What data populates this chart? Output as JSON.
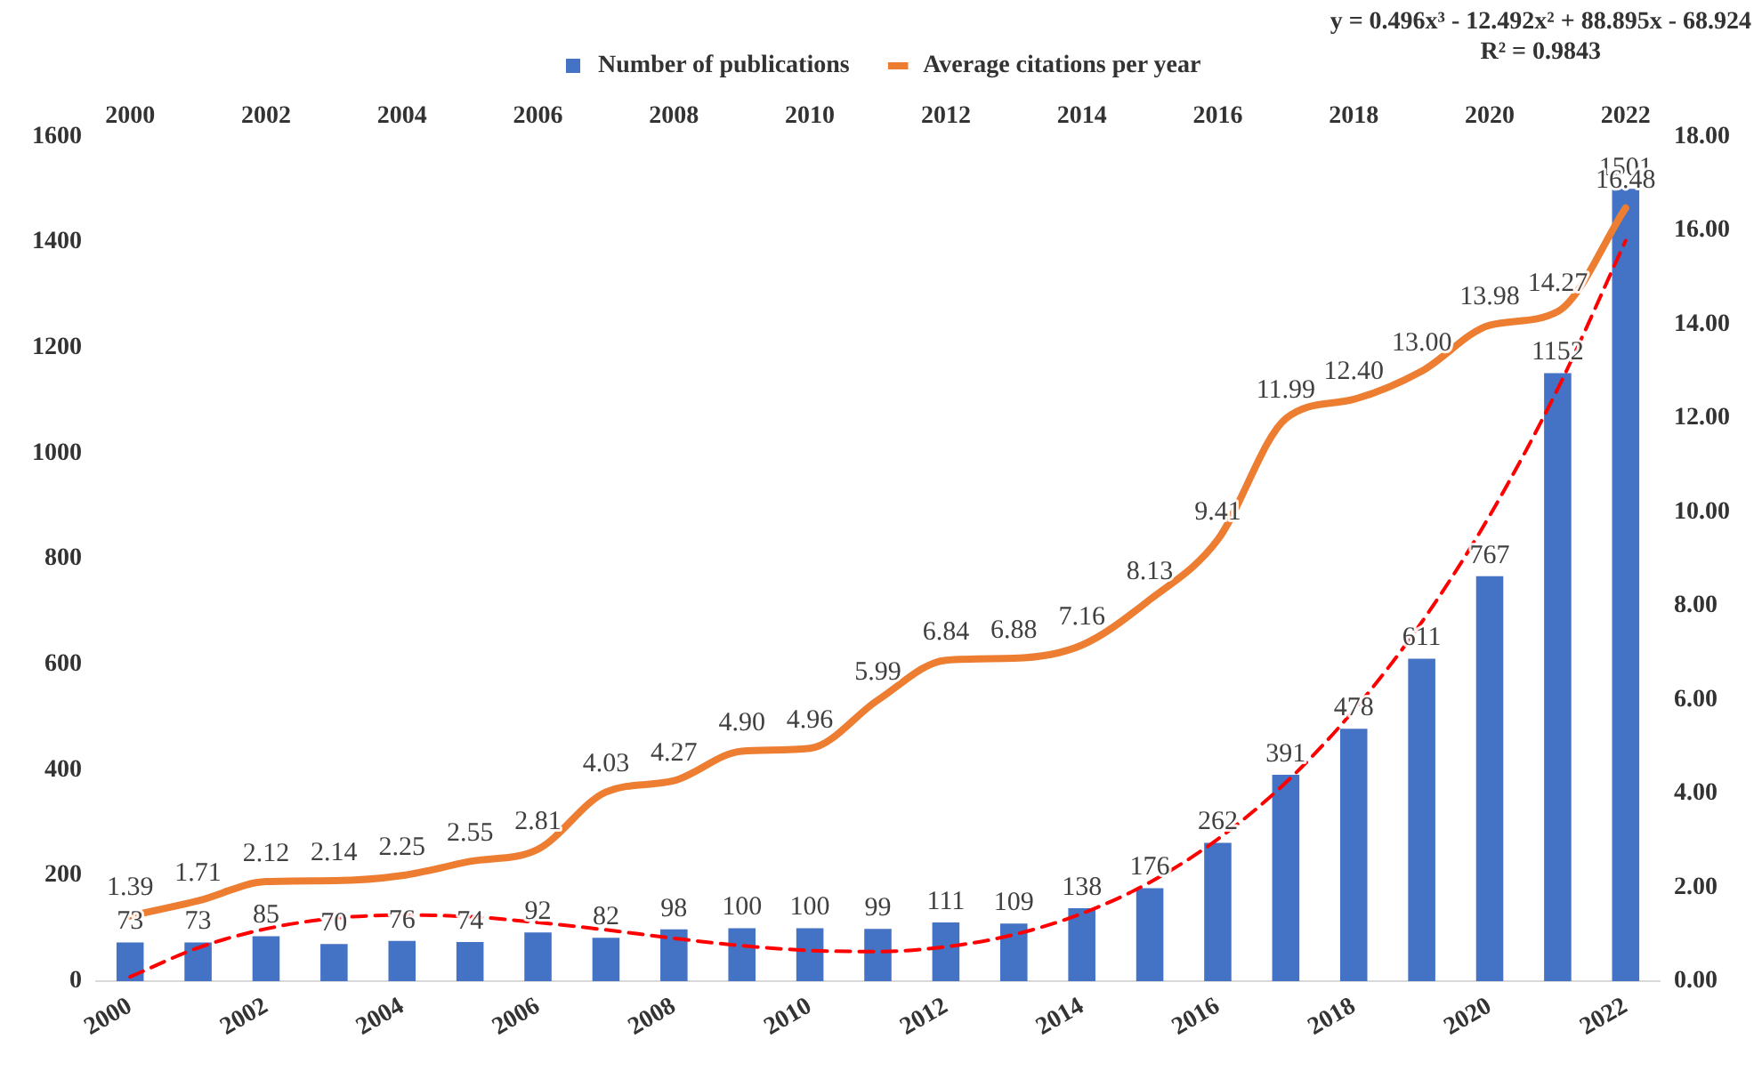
{
  "chart_data": {
    "type": "bar",
    "categories": [
      "2000",
      null,
      "2002",
      null,
      "2004",
      null,
      "2006",
      null,
      "2008",
      null,
      "2010",
      null,
      "2012",
      null,
      "2014",
      null,
      "2016",
      null,
      "2018",
      null,
      "2020",
      null,
      "2022"
    ],
    "series": [
      {
        "name": "Number of publications",
        "color": "#4472c4",
        "values": [
          73,
          73,
          85,
          70,
          76,
          74,
          92,
          82,
          98,
          100,
          100,
          99,
          111,
          109,
          138,
          176,
          262,
          391,
          478,
          611,
          767,
          1152,
          1501
        ],
        "value_labels": [
          "73",
          "73",
          "85",
          "70",
          "76",
          "74",
          "92",
          "82",
          "98",
          "100",
          "100",
          "99",
          "111",
          "109",
          "138",
          "176",
          "262",
          "391",
          "478",
          "611",
          "767",
          "1152",
          "1501"
        ]
      },
      {
        "name": "Average citations per year",
        "type": "line",
        "axis": "y2",
        "color": "#ed7d31",
        "marker": "none",
        "values": [
          1.39,
          1.71,
          2.12,
          2.14,
          2.25,
          2.55,
          2.81,
          4.03,
          4.27,
          4.9,
          4.96,
          5.99,
          6.84,
          6.88,
          7.16,
          8.13,
          9.41,
          11.99,
          12.4,
          13.0,
          13.98,
          14.27,
          16.48
        ],
        "value_labels": [
          "1.39",
          "1.71",
          "2.12",
          "2.14",
          "2.25",
          "2.55",
          "2.81",
          "4.03",
          "4.27",
          "4.90",
          "4.96",
          "5.99",
          "6.84",
          "6.88",
          "7.16",
          "8.13",
          "9.41",
          "11.99",
          "12.40",
          "13.00",
          "13.98",
          "14.27",
          "16.48"
        ]
      },
      {
        "type": "line",
        "color": "#ff0000",
        "line_style": "dashed",
        "marker": "none",
        "values": [
          8,
          63,
          99,
          119,
          125,
          122,
          111,
          97,
          81,
          67,
          58,
          56,
          65,
          88,
          128,
          187,
          269,
          376,
          513,
          680,
          882,
          1122,
          1403
        ]
      }
    ],
    "ylim": [
      0,
      1600
    ],
    "yticks": [
      0,
      200,
      400,
      600,
      800,
      1000,
      1200,
      1400,
      1600
    ],
    "y2lim": [
      0,
      18
    ],
    "y2ticks": [
      {
        "value": 0,
        "label": "0.00"
      },
      {
        "value": 2,
        "label": "2.00"
      },
      {
        "value": 4,
        "label": "4.00"
      },
      {
        "value": 6,
        "label": "6.00"
      },
      {
        "value": 8,
        "label": "8.00"
      },
      {
        "value": 10,
        "label": "10.00"
      },
      {
        "value": 12,
        "label": "12.00"
      },
      {
        "value": 14,
        "label": "14.00"
      },
      {
        "value": 16,
        "label": "16.00"
      },
      {
        "value": 18,
        "label": "18.00"
      }
    ],
    "annotations": [
      "y = 0.496x³ - 12.492x² + 88.895x - 68.924",
      "R² = 0.9843"
    ],
    "legend": "top",
    "grid": false
  }
}
